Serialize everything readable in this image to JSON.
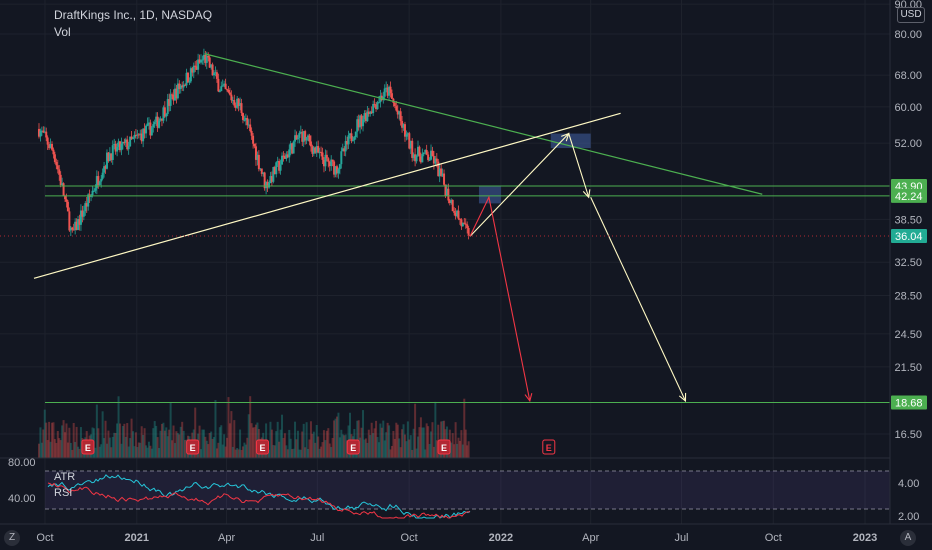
{
  "header": {
    "symbol_title": "DraftKings Inc., 1D, NASDAQ",
    "volume_label": "Vol"
  },
  "price_axis": {
    "currency_button": "USD",
    "ticks": [
      "90.00",
      "80.00",
      "68.00",
      "60.00",
      "52.00",
      "38.50",
      "32.50",
      "28.50",
      "24.50",
      "21.50",
      "16.50"
    ],
    "badges": [
      {
        "value": "43.90",
        "color": "#4caf50"
      },
      {
        "value": "42.24",
        "color": "#4caf50"
      },
      {
        "value": "36.04",
        "color": "#22ab94"
      },
      {
        "value": "18.68",
        "color": "#4caf50"
      }
    ]
  },
  "indicator_pane": {
    "atr_label": "ATR",
    "rsi_label": "RSI",
    "left_ticks": [
      "80.00",
      "40.00"
    ],
    "right_ticks": [
      "4.00",
      "2.00"
    ]
  },
  "time_axis": {
    "labels": [
      "Oct",
      "2021",
      "Apr",
      "Jul",
      "Oct",
      "2022",
      "Apr",
      "Jul",
      "Oct",
      "2023"
    ]
  },
  "earnings_marker": "E",
  "buttons": {
    "zoom": "Z",
    "auto_scale": "A"
  },
  "colors": {
    "background": "#131722",
    "candle_up": "#26a69a",
    "candle_down": "#ef5350",
    "trendline_green": "#4caf50",
    "trendline_yellow": "#fff9c4",
    "arrow_red": "#f23645",
    "atr_line": "#26c6da",
    "rsi_line": "#f23645",
    "highlight_box": "#3d5a99"
  },
  "chart_data": {
    "type": "candlestick",
    "title": "DraftKings Inc., 1D, NASDAQ",
    "y_scale": "log",
    "ylim": [
      14.5,
      90
    ],
    "x_range": [
      "2020-09-20",
      "2023-01-20"
    ],
    "last_price": 36.04,
    "support_resistance_levels": [
      43.9,
      42.24,
      18.68
    ],
    "price_path": [
      [
        "2020-09-25",
        55
      ],
      [
        "2020-10-10",
        50
      ],
      [
        "2020-10-28",
        36
      ],
      [
        "2020-11-15",
        42
      ],
      [
        "2020-12-05",
        50
      ],
      [
        "2020-12-25",
        52
      ],
      [
        "2021-01-20",
        56
      ],
      [
        "2021-02-10",
        64
      ],
      [
        "2021-03-01",
        70
      ],
      [
        "2021-03-10",
        73
      ],
      [
        "2021-03-25",
        65
      ],
      [
        "2021-04-15",
        60
      ],
      [
        "2021-05-10",
        44
      ],
      [
        "2021-05-25",
        48
      ],
      [
        "2021-06-15",
        54
      ],
      [
        "2021-07-05",
        49
      ],
      [
        "2021-07-20",
        47
      ],
      [
        "2021-08-10",
        56
      ],
      [
        "2021-09-01",
        62
      ],
      [
        "2021-09-10",
        64
      ],
      [
        "2021-09-25",
        55
      ],
      [
        "2021-10-05",
        50
      ],
      [
        "2021-10-25",
        49
      ],
      [
        "2021-11-10",
        42
      ],
      [
        "2021-11-25",
        37
      ],
      [
        "2021-12-01",
        36.04
      ]
    ],
    "trendlines": [
      {
        "name": "descending resistance",
        "from": [
          "2021-03-10",
          74
        ],
        "to": [
          "2022-09-20",
          42.5
        ]
      },
      {
        "name": "ascending support",
        "from": [
          "2020-09-20",
          30.5
        ],
        "to": [
          "2022-05-01",
          58.5
        ]
      }
    ],
    "projection_arrows": [
      {
        "color": "yellow",
        "points": [
          [
            "2021-12-01",
            36
          ],
          [
            "2022-03-10",
            54
          ],
          [
            "2022-03-30",
            42
          ]
        ]
      },
      {
        "color": "yellow",
        "points": [
          [
            "2022-04-01",
            42
          ],
          [
            "2022-07-05",
            18.8
          ]
        ]
      },
      {
        "color": "red",
        "points": [
          [
            "2021-12-01",
            36
          ],
          [
            "2021-12-20",
            42
          ],
          [
            "2022-01-30",
            18.8
          ]
        ]
      }
    ],
    "highlight_zones": [
      {
        "from": [
          "2022-02-20",
          54
        ],
        "to": [
          "2022-04-01",
          51
        ]
      },
      {
        "from": [
          "2021-12-10",
          44
        ],
        "to": [
          "2022-01-01",
          41
        ]
      }
    ],
    "earnings_dates": [
      "2020-11-13",
      "2021-02-26",
      "2021-05-07",
      "2021-08-06",
      "2021-11-05",
      "2022-02-18"
    ],
    "indicators": [
      {
        "name": "ATR",
        "right_axis": [
          2,
          4
        ]
      },
      {
        "name": "RSI",
        "left_axis": [
          40,
          80
        ]
      }
    ]
  }
}
